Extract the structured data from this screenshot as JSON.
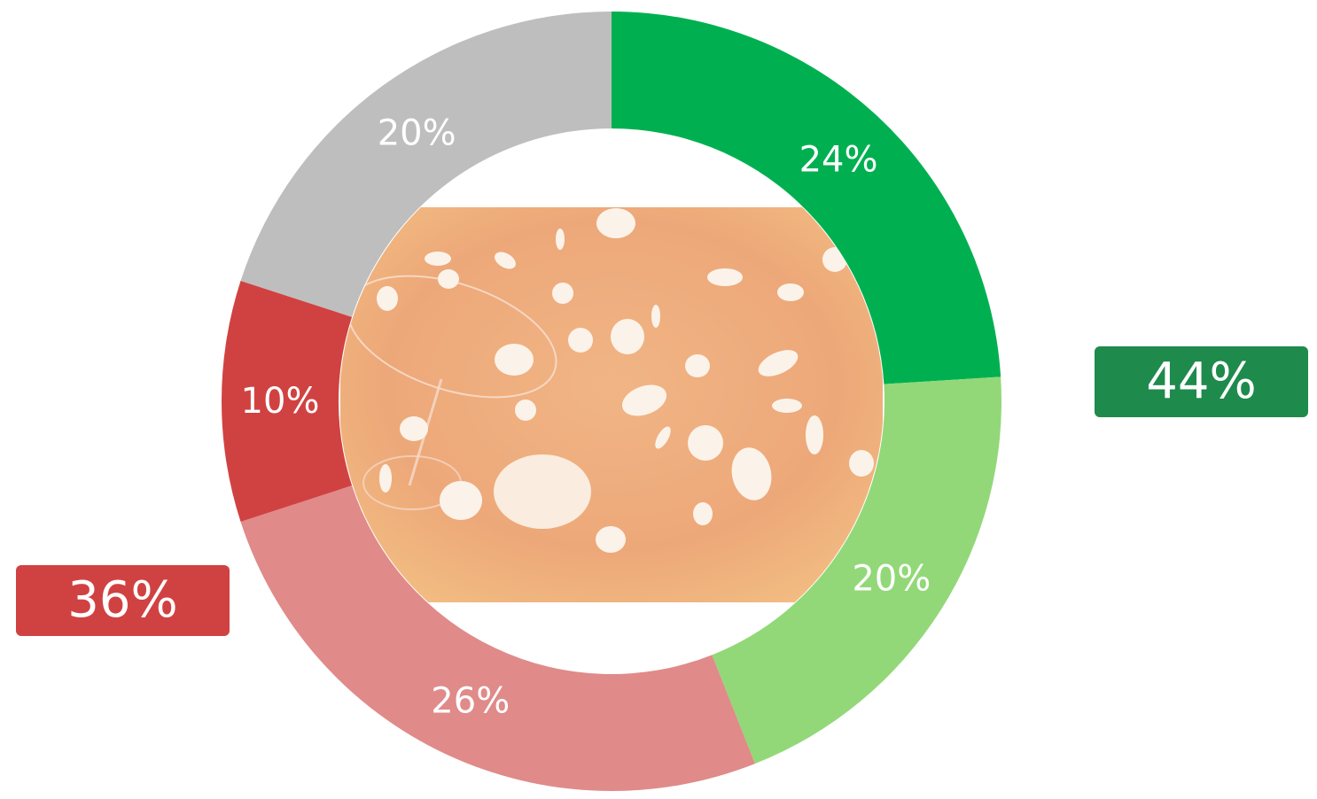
{
  "chart_data": {
    "type": "pie",
    "subtype": "donut",
    "slices": [
      {
        "label": "24%",
        "value": 24,
        "color": "#00b050"
      },
      {
        "label": "20%",
        "value": 20,
        "color": "#92d878"
      },
      {
        "label": "26%",
        "value": 26,
        "color": "#e08a8a"
      },
      {
        "label": "10%",
        "value": 10,
        "color": "#d04241"
      },
      {
        "label": "20%",
        "value": 20,
        "color": "#bebebe"
      }
    ],
    "groups": [
      {
        "label": "44%",
        "value": 44,
        "color": "#1e8a4c"
      },
      {
        "label": "36%",
        "value": 36,
        "color": "#d04241"
      }
    ],
    "center_image": "floating white pills and a cocktail glass on an orange background"
  }
}
